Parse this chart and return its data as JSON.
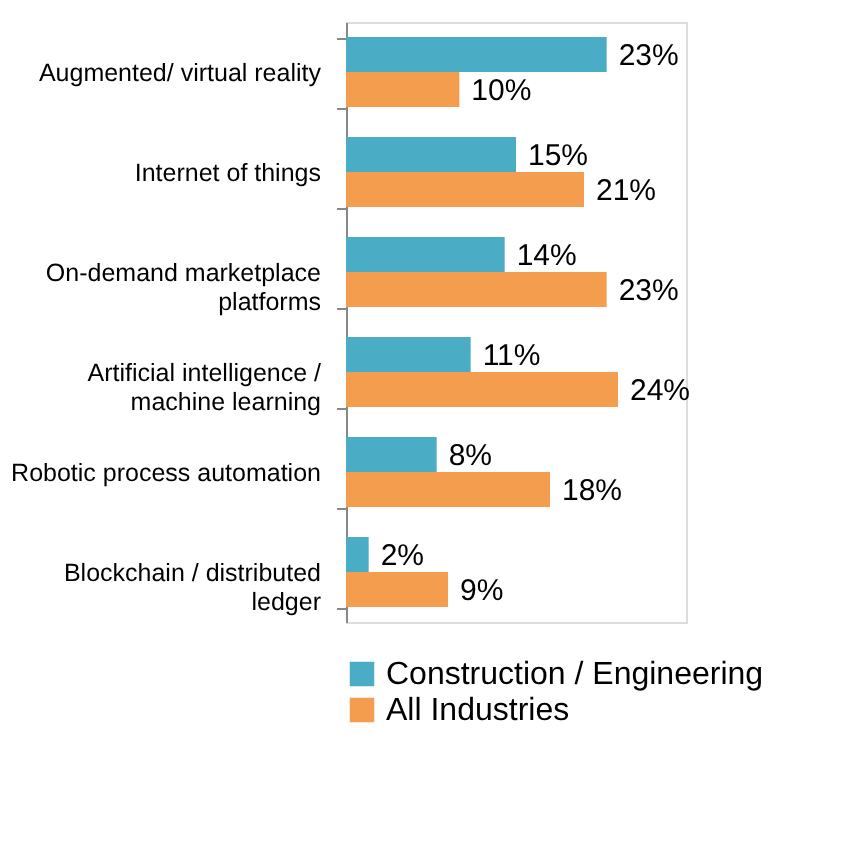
{
  "chart_data": {
    "type": "bar",
    "orientation": "horizontal",
    "legend": "bottom",
    "categories": [
      "Augmented/ virtual reality",
      "Internet of things",
      "On-demand marketplace platforms",
      "Artificial intelligence / machine learning",
      "Robotic process automation",
      "Blockchain / distributed ledger"
    ],
    "series": [
      {
        "name": "Construction / Engineering",
        "color": "#4bacc6",
        "values": [
          23,
          15,
          14,
          11,
          8,
          2
        ],
        "value_labels": [
          "23%",
          "15%",
          "14%",
          "11%",
          "8%",
          "2%"
        ]
      },
      {
        "name": "All Industries",
        "color": "#f59d4f",
        "values": [
          10,
          21,
          23,
          24,
          18,
          9
        ],
        "value_labels": [
          "10%",
          "21%",
          "23%",
          "24%",
          "18%",
          "9%"
        ]
      }
    ]
  }
}
